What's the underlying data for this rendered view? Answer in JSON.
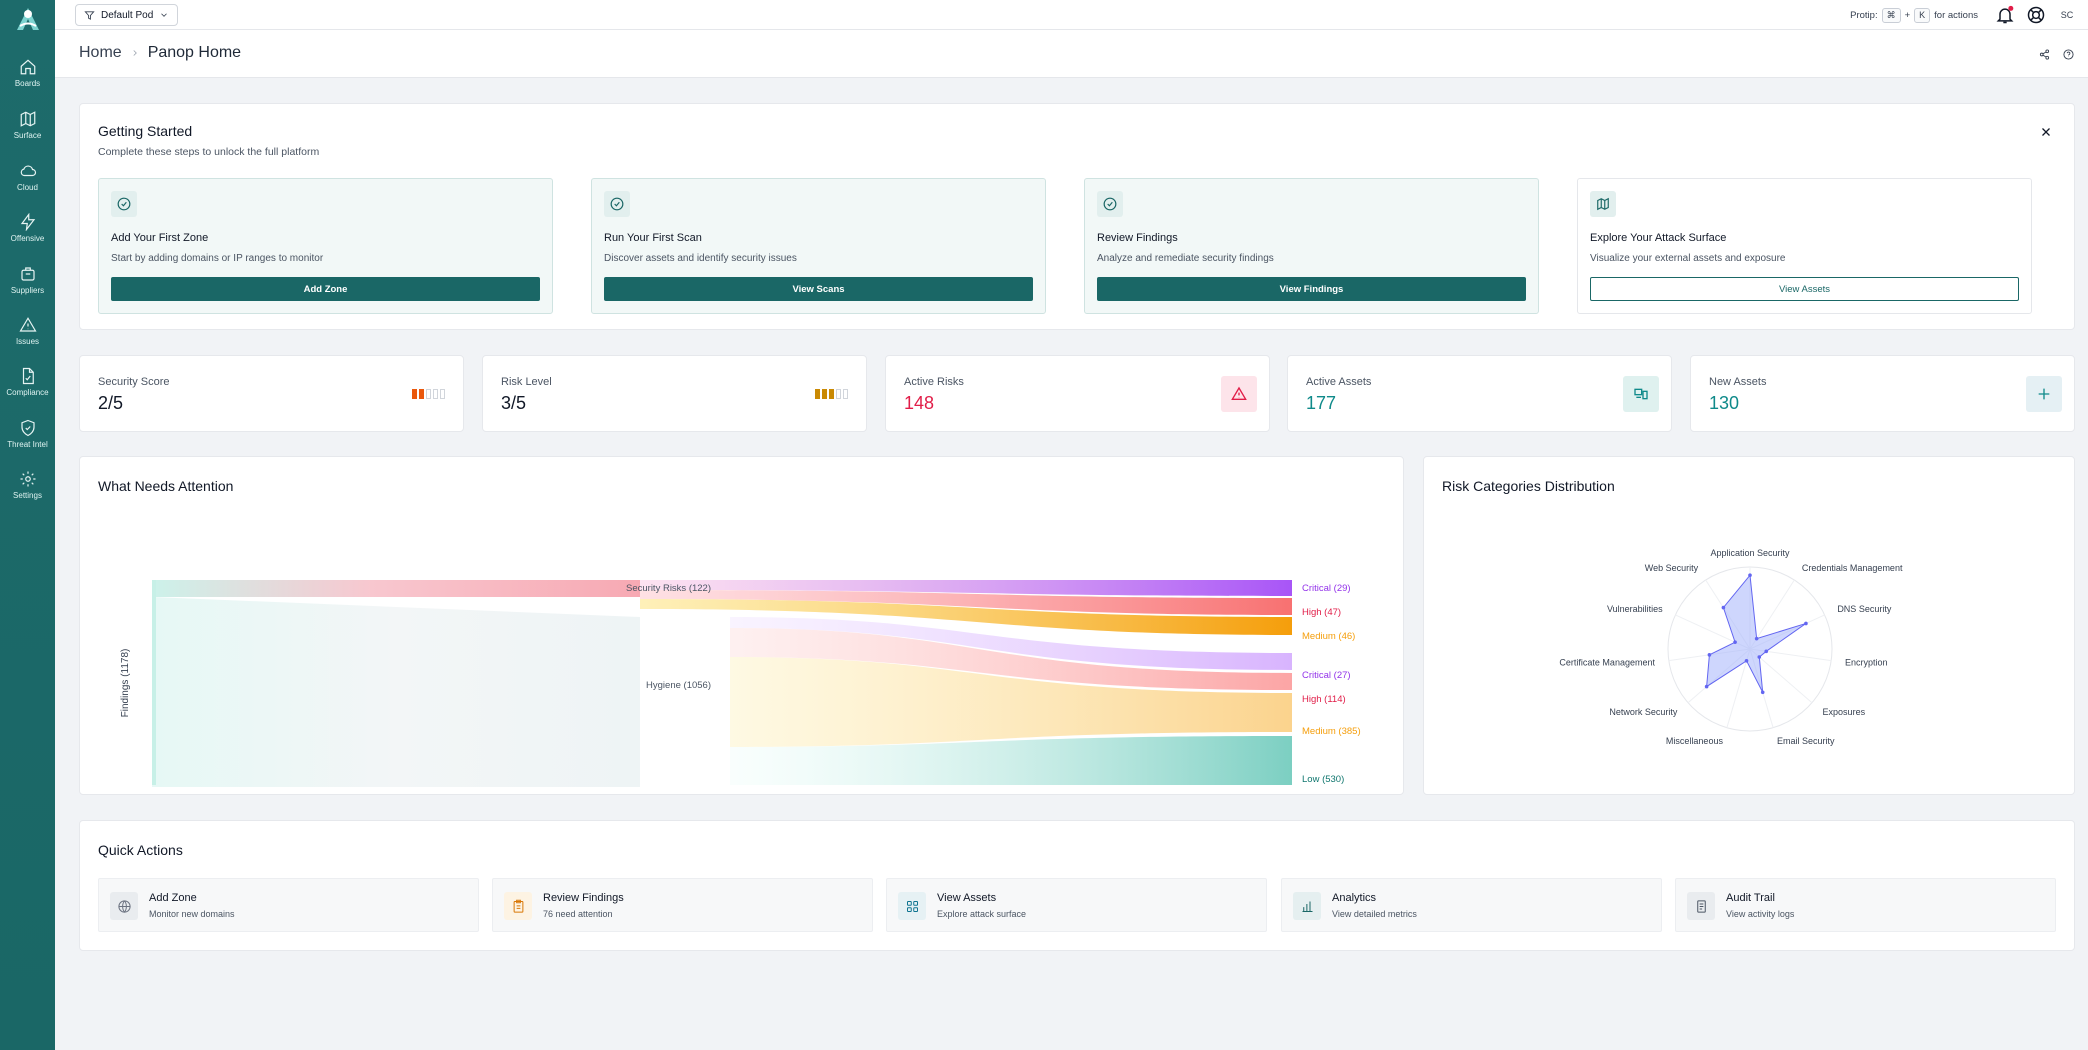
{
  "sidebar": {
    "items": [
      {
        "label": "Boards",
        "icon": "home-icon"
      },
      {
        "label": "Surface",
        "icon": "map-icon"
      },
      {
        "label": "Cloud",
        "icon": "cloud-icon"
      },
      {
        "label": "Offensive",
        "icon": "lightning-icon"
      },
      {
        "label": "Suppliers",
        "icon": "briefcase-icon"
      },
      {
        "label": "Issues",
        "icon": "warning-icon"
      },
      {
        "label": "Compliance",
        "icon": "document-icon"
      },
      {
        "label": "Threat Intel",
        "icon": "shield-icon"
      },
      {
        "label": "Settings",
        "icon": "gear-icon"
      }
    ]
  },
  "topbar": {
    "pod": "Default Pod",
    "protip_prefix": "Protip:",
    "protip_key1": "⌘",
    "protip_plus": "+",
    "protip_key2": "K",
    "protip_suffix": "for actions",
    "avatar": "SC"
  },
  "breadcrumb": {
    "home": "Home",
    "current": "Panop Home"
  },
  "getting_started": {
    "title": "Getting Started",
    "subtitle": "Complete these steps to unlock the full platform",
    "steps": [
      {
        "title": "Add Your First Zone",
        "desc": "Start by adding domains or IP ranges to monitor",
        "button": "Add Zone"
      },
      {
        "title": "Run Your First Scan",
        "desc": "Discover assets and identify security issues",
        "button": "View Scans"
      },
      {
        "title": "Review Findings",
        "desc": "Analyze and remediate security findings",
        "button": "View Findings"
      },
      {
        "title": "Explore Your Attack Surface",
        "desc": "Visualize your external assets and exposure",
        "button": "View Assets"
      }
    ]
  },
  "stats": [
    {
      "label": "Security Score",
      "value": "2/5",
      "level": 2
    },
    {
      "label": "Risk Level",
      "value": "3/5",
      "level": 3
    },
    {
      "label": "Active Risks",
      "value": "148"
    },
    {
      "label": "Active Assets",
      "value": "177"
    },
    {
      "label": "New Assets",
      "value": "130"
    }
  ],
  "colors": {
    "brand": "#1a6766",
    "red": "#e11d48",
    "teal": "#0f8a8a",
    "orange": "#f59e0b",
    "purple": "#a855f7"
  },
  "attention": {
    "title": "What Needs Attention",
    "axis_label": "Findings (1178)",
    "groups": [
      {
        "label": "Security Risks (122)",
        "value": 122
      },
      {
        "label": "Hygiene (1056)",
        "value": 1056
      }
    ],
    "outputs": [
      {
        "label": "Critical (29)",
        "value": 29,
        "color": "#9333ea"
      },
      {
        "label": "High (47)",
        "value": 47,
        "color": "#e11d48"
      },
      {
        "label": "Medium (46)",
        "value": 46,
        "color": "#f59e0b"
      },
      {
        "label": "Critical (27)",
        "value": 27,
        "color": "#9333ea"
      },
      {
        "label": "High (114)",
        "value": 114,
        "color": "#e11d48"
      },
      {
        "label": "Medium (385)",
        "value": 385,
        "color": "#f59e0b"
      },
      {
        "label": "Low (530)",
        "value": 530,
        "color": "#0f766e"
      }
    ]
  },
  "risk": {
    "title": "Risk Categories Distribution",
    "categories": [
      "Application Security",
      "Credentials Management",
      "DNS Security",
      "Encryption",
      "Exposures",
      "Email Security",
      "Miscellaneous",
      "Network Security",
      "Certificate Management",
      "Vulnerabilities",
      "Web Security"
    ],
    "values": [
      0.9,
      0.15,
      0.75,
      0.2,
      0.15,
      0.55,
      0.15,
      0.7,
      0.5,
      0.2,
      0.6
    ]
  },
  "quick_actions": {
    "title": "Quick Actions",
    "items": [
      {
        "title": "Add Zone",
        "sub": "Monitor new domains"
      },
      {
        "title": "Review Findings",
        "sub": "76 need attention"
      },
      {
        "title": "View Assets",
        "sub": "Explore attack surface"
      },
      {
        "title": "Analytics",
        "sub": "View detailed metrics"
      },
      {
        "title": "Audit Trail",
        "sub": "View activity logs"
      }
    ]
  }
}
